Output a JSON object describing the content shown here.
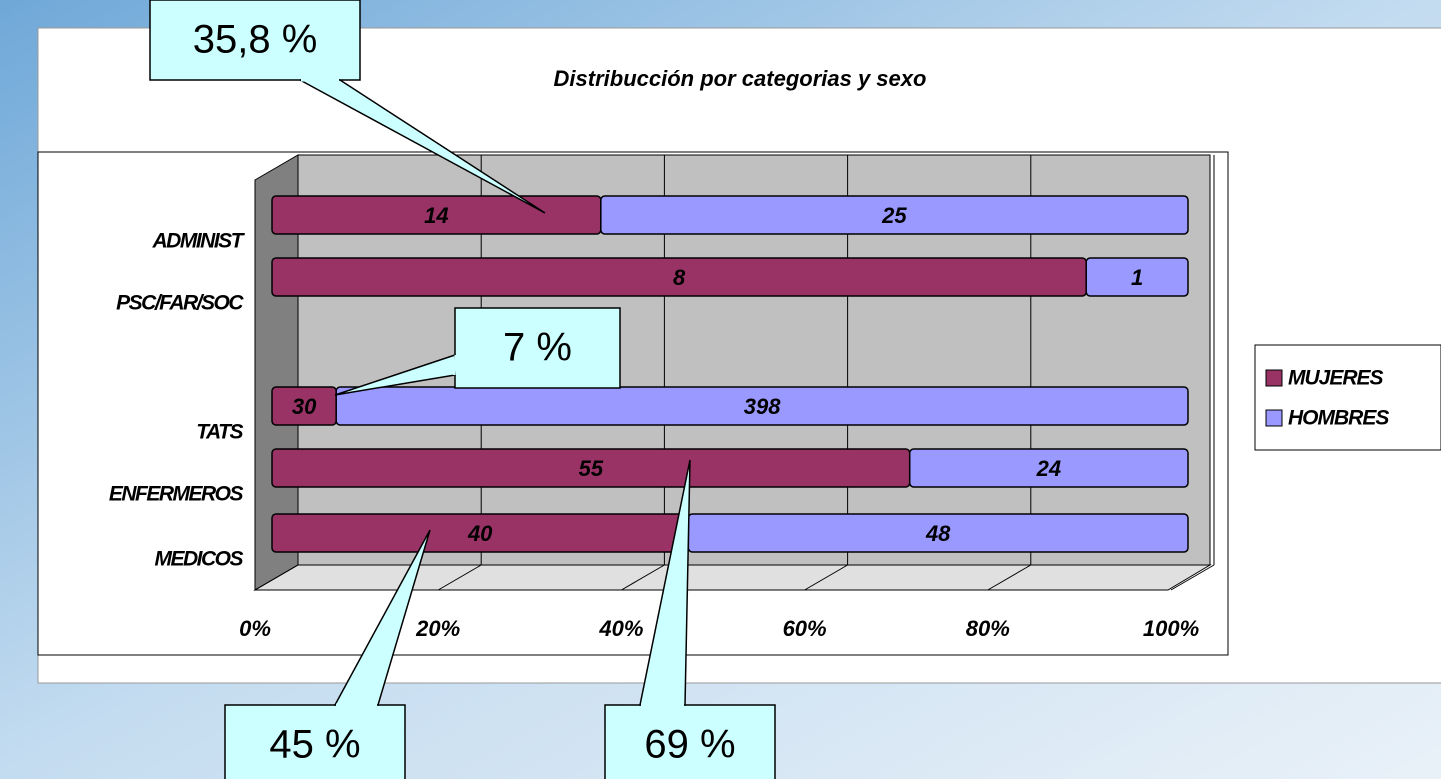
{
  "chart_data": {
    "type": "stacked_percent_barh",
    "title": "Distribucción por categorias y sexo",
    "categories": [
      "MEDICOS",
      "ENFERMEROS",
      "TATS",
      null,
      "PSC/FAR/SOC",
      "ADMINIST"
    ],
    "series": [
      {
        "name": "MUJERES",
        "color": "#993366",
        "values": [
          40,
          55,
          30,
          null,
          8,
          14
        ]
      },
      {
        "name": "HOMBRES",
        "color": "#9999ff",
        "values": [
          48,
          24,
          398,
          null,
          1,
          25
        ]
      }
    ],
    "xlim": [
      0,
      100
    ],
    "xticks": [
      {
        "value": 0,
        "label": "0%"
      },
      {
        "value": 20,
        "label": "20%"
      },
      {
        "value": 40,
        "label": "40%"
      },
      {
        "value": 60,
        "label": "60%"
      },
      {
        "value": 80,
        "label": "80%"
      },
      {
        "value": 100,
        "label": "100%"
      }
    ],
    "grid": true,
    "legend": "right",
    "annotations": [
      "35,8 %",
      "7 %",
      "45 %",
      "69 %"
    ]
  }
}
